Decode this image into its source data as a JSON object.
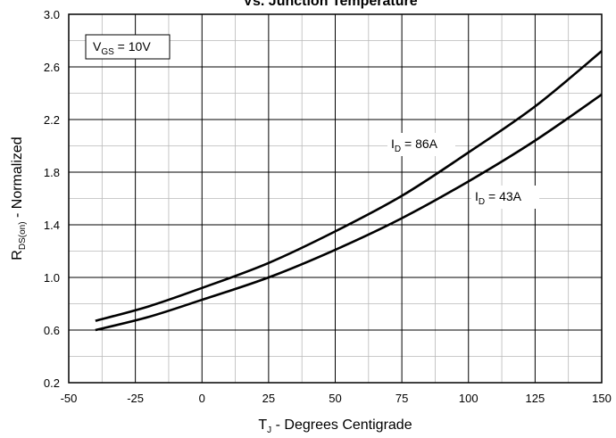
{
  "chart_data": {
    "type": "line",
    "title": "Vs. Junction Temperature",
    "xlabel": {
      "main": "T",
      "sub": "J",
      "rest": " - Degrees Centigrade"
    },
    "ylabel": {
      "main": "R",
      "sub": "DS(on)",
      "rest": " - Normalized"
    },
    "xlim": [
      -50,
      150
    ],
    "ylim": [
      0.2,
      3.0
    ],
    "x_ticks": [
      "-50",
      "-25",
      "0",
      "25",
      "50",
      "75",
      "100",
      "125",
      "150"
    ],
    "y_ticks": [
      "0.2",
      "0.6",
      "1.0",
      "1.4",
      "1.8",
      "2.2",
      "2.6",
      "3.0"
    ],
    "grid": true,
    "condition": {
      "main": "V",
      "sub": "GS",
      "rest": " = 10V"
    },
    "series": [
      {
        "name": "86A",
        "label": {
          "main": "I",
          "sub": "D",
          "rest": " = 86A"
        },
        "x": [
          -40,
          -20,
          0,
          25,
          50,
          75,
          100,
          125,
          150
        ],
        "y": [
          0.67,
          0.78,
          0.92,
          1.11,
          1.35,
          1.62,
          1.95,
          2.3,
          2.72
        ]
      },
      {
        "name": "43A",
        "label": {
          "main": "I",
          "sub": "D",
          "rest": " = 43A"
        },
        "x": [
          -40,
          -20,
          0,
          25,
          50,
          75,
          100,
          125,
          150
        ],
        "y": [
          0.6,
          0.7,
          0.83,
          1.0,
          1.21,
          1.45,
          1.73,
          2.04,
          2.39
        ]
      }
    ]
  }
}
